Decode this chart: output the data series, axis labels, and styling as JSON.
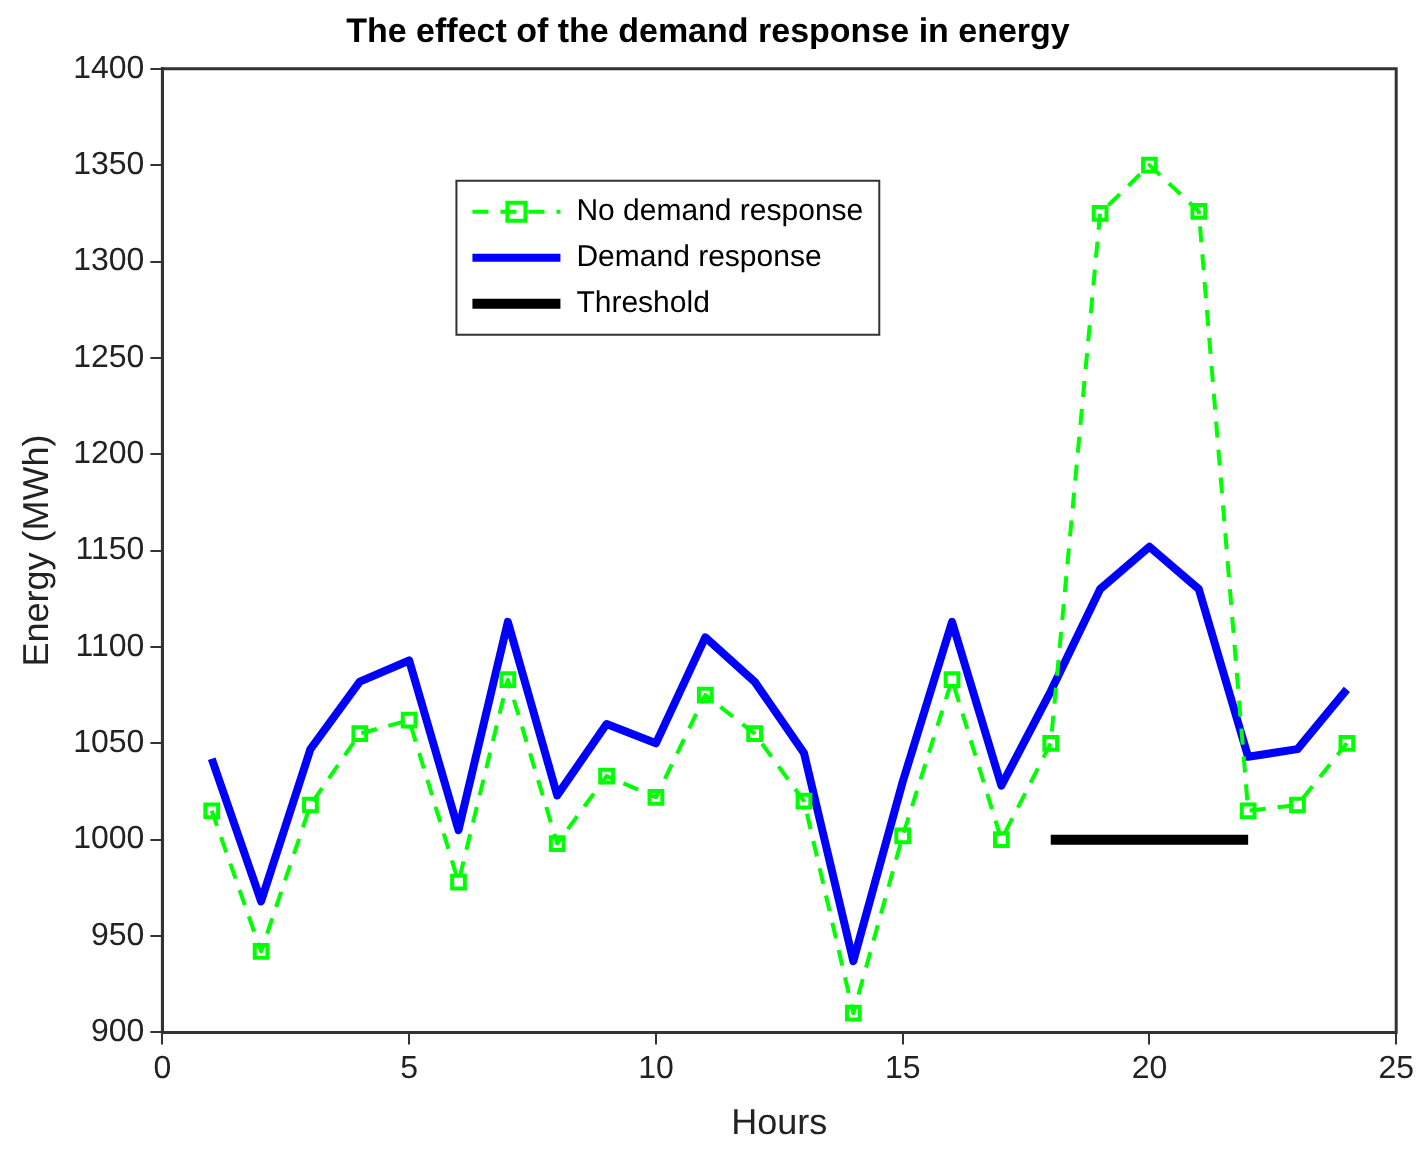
{
  "chart_data": {
    "type": "line",
    "title": "The effect of the demand response in energy",
    "xlabel": "Hours",
    "ylabel": "Energy (MWh)",
    "x": [
      1,
      2,
      3,
      4,
      5,
      6,
      7,
      8,
      9,
      10,
      11,
      12,
      13,
      14,
      15,
      16,
      17,
      18,
      19,
      20,
      21,
      22,
      23,
      24
    ],
    "series": [
      {
        "name": "No demand response",
        "color": "#00ff00",
        "marker": "square",
        "line_style": "dashed",
        "values": [
          1015,
          942,
          1018,
          1055,
          1062,
          978,
          1083,
          998,
          1033,
          1022,
          1075,
          1055,
          1020,
          910,
          1002,
          1083,
          1000,
          1050,
          1325,
          1350,
          1326,
          1015,
          1018,
          1050
        ]
      },
      {
        "name": "Demand response",
        "color": "#0000ff",
        "marker": "none",
        "line_style": "solid",
        "values": [
          1042,
          968,
          1047,
          1082,
          1093,
          1005,
          1113,
          1023,
          1060,
          1050,
          1105,
          1082,
          1045,
          937,
          1030,
          1113,
          1028,
          1077,
          1130,
          1152,
          1130,
          1043,
          1047,
          1078
        ]
      },
      {
        "name": "Threshold",
        "color": "#000000",
        "marker": "none",
        "line_style": "solid",
        "x": [
          18,
          22
        ],
        "values": [
          1000,
          1000
        ]
      }
    ],
    "xlim": [
      0,
      25
    ],
    "xticks": [
      0,
      5,
      10,
      15,
      20,
      25
    ],
    "ylim": [
      900,
      1400
    ],
    "yticks": [
      900,
      950,
      1000,
      1050,
      1100,
      1150,
      1200,
      1250,
      1300,
      1350,
      1400
    ],
    "grid": false,
    "legend": "top"
  }
}
